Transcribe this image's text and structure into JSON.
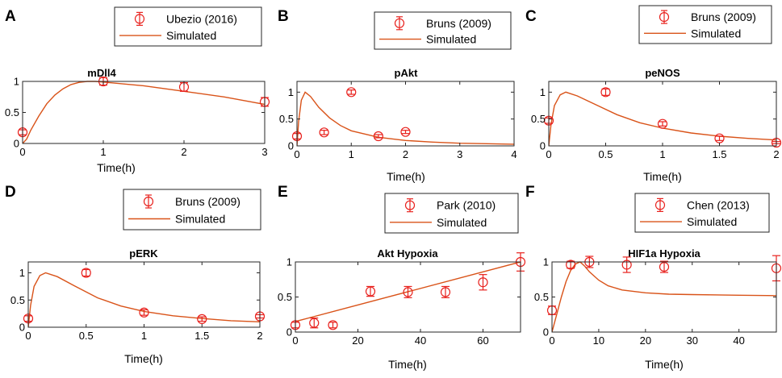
{
  "figure": {
    "colors": {
      "data": "#e8211d",
      "sim": "#d95319",
      "axis": "#262626"
    }
  },
  "chart_data": [
    {
      "panel_label": "A",
      "title": "mDll4",
      "type": "line",
      "xlabel": "Time(h)",
      "ylabel": "",
      "xlim": [
        0,
        3
      ],
      "ylim": [
        0,
        1
      ],
      "xticks": [
        0,
        1,
        2,
        3
      ],
      "xtick_labels": [
        "0",
        "1",
        "2",
        "3"
      ],
      "yticks": [
        0,
        0.5,
        1
      ],
      "ytick_labels": [
        "0",
        "0.5",
        "1"
      ],
      "legend": {
        "data_label": "Ubezio (2016)",
        "sim_label": "Simulated"
      },
      "data_points": [
        {
          "x": 0,
          "y": 0.18,
          "err": 0.04
        },
        {
          "x": 1,
          "y": 1.0,
          "err": 0.06
        },
        {
          "x": 2,
          "y": 0.91,
          "err": 0.07
        },
        {
          "x": 3,
          "y": 0.67,
          "err": 0.07
        }
      ],
      "simulated": [
        [
          0,
          0
        ],
        [
          0.05,
          0.07
        ],
        [
          0.1,
          0.21
        ],
        [
          0.2,
          0.44
        ],
        [
          0.3,
          0.64
        ],
        [
          0.4,
          0.78
        ],
        [
          0.5,
          0.88
        ],
        [
          0.6,
          0.95
        ],
        [
          0.7,
          0.985
        ],
        [
          0.8,
          1.0
        ],
        [
          0.9,
          1.0
        ],
        [
          1.0,
          0.99
        ],
        [
          1.5,
          0.93
        ],
        [
          2.0,
          0.84
        ],
        [
          2.5,
          0.75
        ],
        [
          3.0,
          0.63
        ]
      ]
    },
    {
      "panel_label": "B",
      "title": "pAkt",
      "type": "line",
      "xlabel": "Time(h)",
      "ylabel": "",
      "xlim": [
        0,
        4
      ],
      "ylim": [
        0,
        1.2
      ],
      "xticks": [
        0,
        1,
        2,
        3,
        4
      ],
      "xtick_labels": [
        "0",
        "1",
        "2",
        "3",
        "4"
      ],
      "yticks": [
        0,
        0.5,
        1
      ],
      "ytick_labels": [
        "0",
        "0.5",
        "1"
      ],
      "legend": {
        "data_label": "Bruns (2009)",
        "sim_label": "Simulated"
      },
      "data_points": [
        {
          "x": 0,
          "y": 0.18,
          "err": 0.05
        },
        {
          "x": 0.5,
          "y": 0.25,
          "err": 0.04
        },
        {
          "x": 1,
          "y": 1.0,
          "err": 0.04
        },
        {
          "x": 1.5,
          "y": 0.18,
          "err": 0.03
        },
        {
          "x": 2,
          "y": 0.26,
          "err": 0.03
        }
      ],
      "simulated": [
        [
          0,
          0
        ],
        [
          0.03,
          0.45
        ],
        [
          0.08,
          0.85
        ],
        [
          0.15,
          1.0
        ],
        [
          0.25,
          0.92
        ],
        [
          0.4,
          0.72
        ],
        [
          0.6,
          0.52
        ],
        [
          0.8,
          0.38
        ],
        [
          1.0,
          0.28
        ],
        [
          1.5,
          0.16
        ],
        [
          2.0,
          0.1
        ],
        [
          2.5,
          0.07
        ],
        [
          3.0,
          0.05
        ],
        [
          3.5,
          0.04
        ],
        [
          4.0,
          0.03
        ]
      ]
    },
    {
      "panel_label": "C",
      "title": "peNOS",
      "type": "line",
      "xlabel": "Time(h)",
      "ylabel": "",
      "xlim": [
        0,
        2
      ],
      "ylim": [
        0,
        1.2
      ],
      "xticks": [
        0,
        0.5,
        1,
        1.5,
        2
      ],
      "xtick_labels": [
        "0",
        "0.5",
        "1",
        "1.5",
        "2"
      ],
      "yticks": [
        0,
        0.5,
        1
      ],
      "ytick_labels": [
        "0",
        "0.5",
        "1"
      ],
      "legend": {
        "data_label": "Bruns (2009)",
        "sim_label": "Simulated"
      },
      "data_points": [
        {
          "x": 0,
          "y": 0.47,
          "err": 0.05
        },
        {
          "x": 0.5,
          "y": 1.0,
          "err": 0.06
        },
        {
          "x": 1,
          "y": 0.41,
          "err": 0.04
        },
        {
          "x": 1.5,
          "y": 0.14,
          "err": 0.04
        },
        {
          "x": 2,
          "y": 0.06,
          "err": 0.02
        }
      ],
      "simulated": [
        [
          0,
          0
        ],
        [
          0.02,
          0.4
        ],
        [
          0.05,
          0.75
        ],
        [
          0.1,
          0.95
        ],
        [
          0.15,
          1.0
        ],
        [
          0.25,
          0.93
        ],
        [
          0.4,
          0.78
        ],
        [
          0.6,
          0.58
        ],
        [
          0.8,
          0.43
        ],
        [
          1.0,
          0.33
        ],
        [
          1.25,
          0.24
        ],
        [
          1.5,
          0.18
        ],
        [
          1.75,
          0.14
        ],
        [
          2.0,
          0.11
        ]
      ]
    },
    {
      "panel_label": "D",
      "title": "pERK",
      "type": "line",
      "xlabel": "Time(h)",
      "ylabel": "",
      "xlim": [
        0,
        2
      ],
      "ylim": [
        0,
        1.2
      ],
      "xticks": [
        0,
        0.5,
        1,
        1.5,
        2
      ],
      "xtick_labels": [
        "0",
        "0.5",
        "1",
        "1.5",
        "2"
      ],
      "yticks": [
        0,
        0.5,
        1
      ],
      "ytick_labels": [
        "0",
        "0.5",
        "1"
      ],
      "legend": {
        "data_label": "Bruns (2009)",
        "sim_label": "Simulated"
      },
      "data_points": [
        {
          "x": 0,
          "y": 0.16,
          "err": 0.05
        },
        {
          "x": 0.5,
          "y": 1.0,
          "err": 0.06
        },
        {
          "x": 1,
          "y": 0.27,
          "err": 0.05
        },
        {
          "x": 1.5,
          "y": 0.15,
          "err": 0.04
        },
        {
          "x": 2,
          "y": 0.2,
          "err": 0.03
        }
      ],
      "simulated": [
        [
          0,
          0
        ],
        [
          0.02,
          0.4
        ],
        [
          0.05,
          0.75
        ],
        [
          0.1,
          0.95
        ],
        [
          0.15,
          1.0
        ],
        [
          0.25,
          0.93
        ],
        [
          0.4,
          0.76
        ],
        [
          0.6,
          0.54
        ],
        [
          0.8,
          0.39
        ],
        [
          1.0,
          0.29
        ],
        [
          1.25,
          0.21
        ],
        [
          1.5,
          0.16
        ],
        [
          1.75,
          0.12
        ],
        [
          2.0,
          0.1
        ]
      ]
    },
    {
      "panel_label": "E",
      "title": "Akt Hypoxia",
      "type": "line",
      "xlabel": "Time(h)",
      "ylabel": "",
      "xlim": [
        0,
        72
      ],
      "ylim": [
        0,
        1
      ],
      "xticks": [
        0,
        20,
        40,
        60
      ],
      "xtick_labels": [
        "0",
        "20",
        "40",
        "60"
      ],
      "yticks": [
        0,
        0.5,
        1
      ],
      "ytick_labels": [
        "0",
        "0.5",
        "1"
      ],
      "legend": {
        "data_label": "Park (2010)",
        "sim_label": "Simulated"
      },
      "data_points": [
        {
          "x": 0,
          "y": 0.1,
          "err": 0.04
        },
        {
          "x": 6,
          "y": 0.13,
          "err": 0.07
        },
        {
          "x": 12,
          "y": 0.1,
          "err": 0.04
        },
        {
          "x": 24,
          "y": 0.58,
          "err": 0.07
        },
        {
          "x": 36,
          "y": 0.57,
          "err": 0.08
        },
        {
          "x": 48,
          "y": 0.57,
          "err": 0.08
        },
        {
          "x": 60,
          "y": 0.71,
          "err": 0.11
        },
        {
          "x": 72,
          "y": 1.0,
          "err": 0.13
        }
      ],
      "simulated": [
        [
          0,
          0.15
        ],
        [
          72,
          1.0
        ]
      ]
    },
    {
      "panel_label": "F",
      "title": "HIF1a Hypoxia",
      "type": "line",
      "xlabel": "Time(h)",
      "ylabel": "",
      "xlim": [
        0,
        48
      ],
      "ylim": [
        0,
        1
      ],
      "xticks": [
        0,
        10,
        20,
        30,
        40
      ],
      "xtick_labels": [
        "0",
        "10",
        "20",
        "30",
        "40"
      ],
      "yticks": [
        0,
        0.5,
        1
      ],
      "ytick_labels": [
        "0",
        "0.5",
        "1"
      ],
      "legend": {
        "data_label": "Chen (2013)",
        "sim_label": "Simulated"
      },
      "data_points": [
        {
          "x": 0,
          "y": 0.31,
          "err": 0.06
        },
        {
          "x": 4,
          "y": 0.96,
          "err": 0.05
        },
        {
          "x": 8,
          "y": 1.0,
          "err": 0.08
        },
        {
          "x": 16,
          "y": 0.96,
          "err": 0.11
        },
        {
          "x": 24,
          "y": 0.93,
          "err": 0.08
        },
        {
          "x": 48,
          "y": 0.91,
          "err": 0.18
        }
      ],
      "simulated": [
        [
          0,
          0
        ],
        [
          1,
          0.25
        ],
        [
          2,
          0.5
        ],
        [
          3,
          0.72
        ],
        [
          4,
          0.88
        ],
        [
          5,
          0.97
        ],
        [
          6,
          1.0
        ],
        [
          7,
          0.94
        ],
        [
          8,
          0.86
        ],
        [
          10,
          0.74
        ],
        [
          12,
          0.66
        ],
        [
          15,
          0.6
        ],
        [
          20,
          0.56
        ],
        [
          25,
          0.54
        ],
        [
          30,
          0.535
        ],
        [
          40,
          0.525
        ],
        [
          48,
          0.52
        ]
      ]
    }
  ]
}
